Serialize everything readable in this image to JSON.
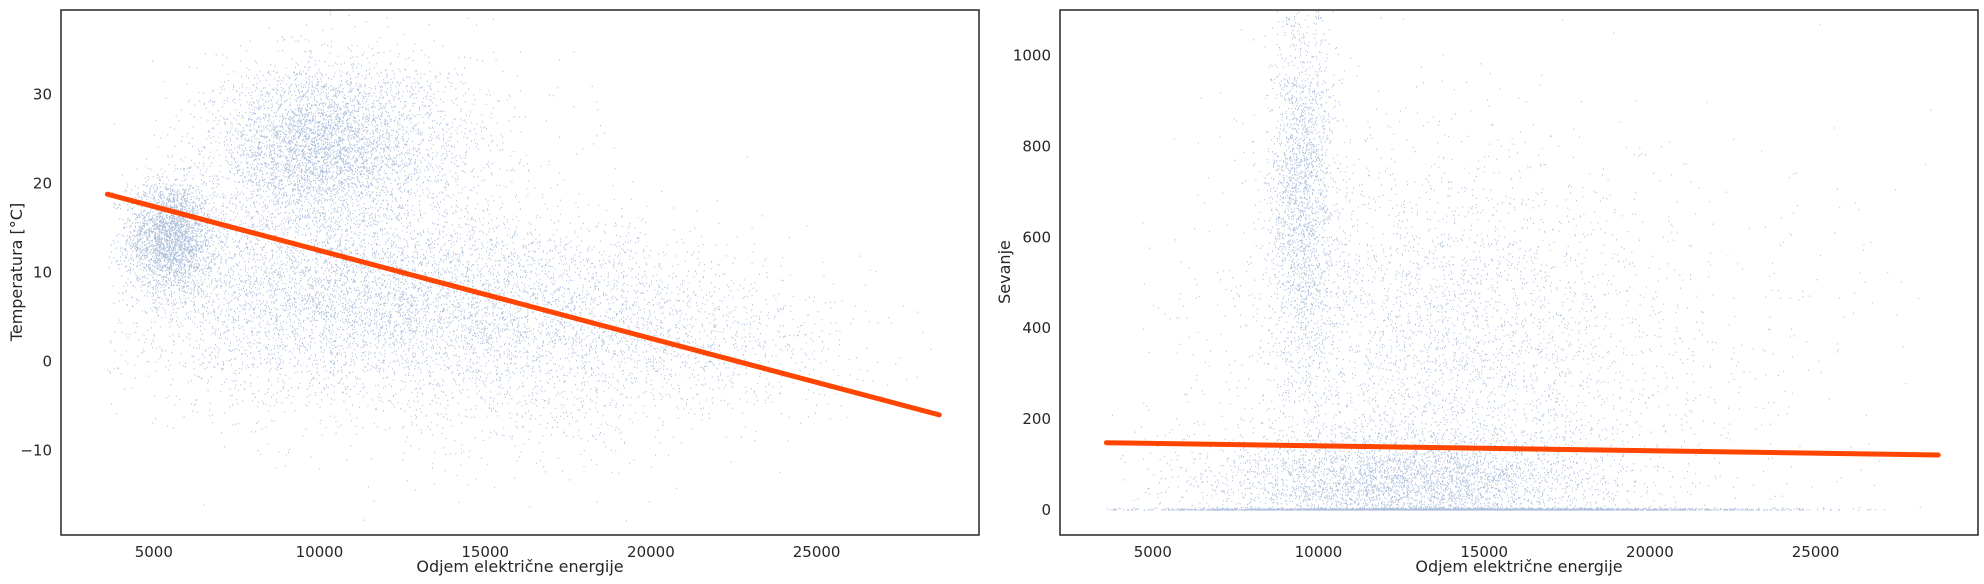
{
  "chart_data": [
    {
      "type": "scatter",
      "xlabel": "Odjem električne energije",
      "ylabel": "Temperatura [°C]",
      "xlim": [
        2200,
        29900
      ],
      "ylim": [
        -19.5,
        39.5
      ],
      "xticks": [
        5000,
        10000,
        15000,
        20000,
        25000
      ],
      "yticks": [
        -10,
        0,
        10,
        20,
        30
      ],
      "grid": false,
      "point_color": "#4c72b0",
      "line_color": "#ff4500",
      "trend_line": {
        "x": [
          3600,
          28700
        ],
        "y": [
          18.8,
          -6.0
        ]
      },
      "clusters": [
        {
          "cx": 5500,
          "cy": 14,
          "sx": 650,
          "sy": 3.2,
          "n": 2600
        },
        {
          "cx": 9800,
          "cy": 24,
          "sx": 1500,
          "sy": 4.5,
          "n": 3400
        },
        {
          "cx": 12000,
          "cy": 26,
          "sx": 2000,
          "sy": 4.5,
          "n": 1200
        },
        {
          "cx": 10000,
          "cy": 8,
          "sx": 3200,
          "sy": 6.5,
          "n": 4200
        },
        {
          "cx": 15500,
          "cy": 6,
          "sx": 3500,
          "sy": 5.5,
          "n": 3000
        },
        {
          "cx": 21000,
          "cy": 2,
          "sx": 2800,
          "sy": 4.0,
          "n": 900
        },
        {
          "cx": 17000,
          "cy": -6,
          "sx": 3000,
          "sy": 4.0,
          "n": 250
        }
      ]
    },
    {
      "type": "scatter",
      "xlabel": "Odjem električne energije",
      "ylabel": "Sevanje",
      "xlim": [
        2200,
        29900
      ],
      "ylim": [
        -55,
        1100
      ],
      "xticks": [
        5000,
        10000,
        15000,
        20000,
        25000
      ],
      "yticks": [
        0,
        200,
        400,
        600,
        800,
        1000
      ],
      "grid": false,
      "point_color": "#4c72b0",
      "line_color": "#ff4500",
      "trend_line": {
        "x": [
          3600,
          28700
        ],
        "y": [
          148,
          121
        ]
      },
      "clusters": [
        {
          "cx": 14000,
          "cy": 0,
          "sx": 4500,
          "sy": 2,
          "n": 2600
        },
        {
          "cx": 12500,
          "cy": 60,
          "sx": 3000,
          "sy": 60,
          "n": 4000
        },
        {
          "cx": 9500,
          "cy": 700,
          "sx": 500,
          "sy": 220,
          "n": 2200
        },
        {
          "cx": 13500,
          "cy": 350,
          "sx": 3200,
          "sy": 230,
          "n": 3500
        },
        {
          "cx": 19000,
          "cy": 300,
          "sx": 4000,
          "sy": 220,
          "n": 700
        }
      ]
    }
  ]
}
